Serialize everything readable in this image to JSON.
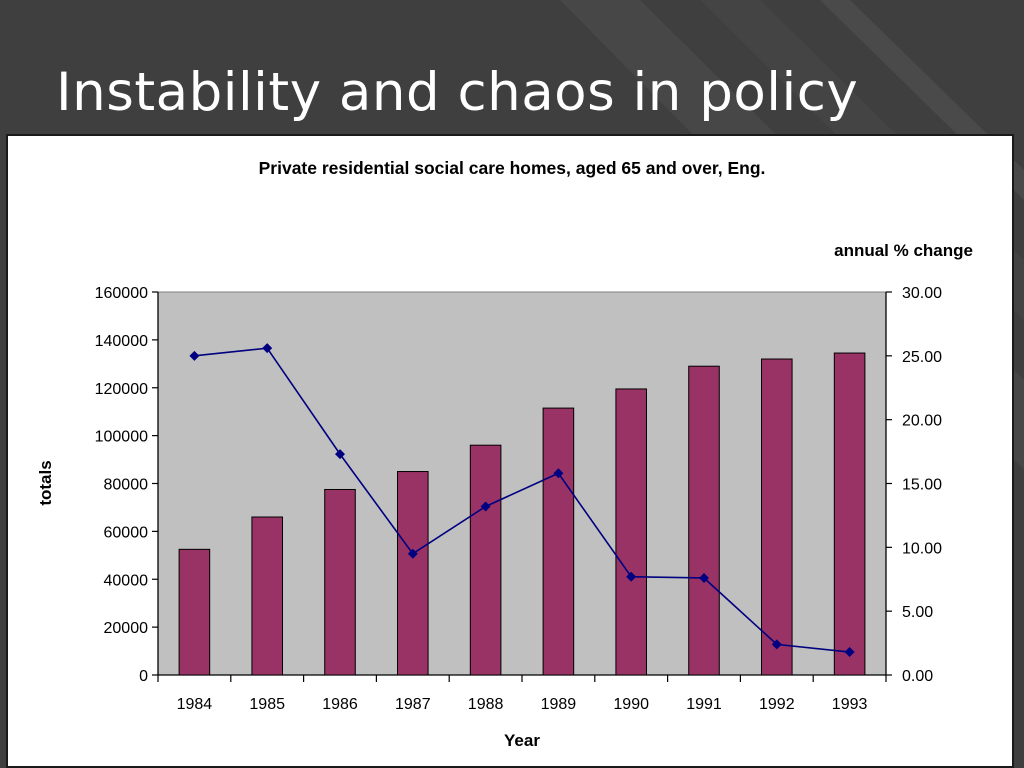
{
  "slide": {
    "title": "Instability and chaos in policy"
  },
  "colors": {
    "background": "#3f3f3f",
    "plot_area": "#c0c0c0",
    "bar": "#993366",
    "line": "#000080"
  },
  "chart_data": {
    "type": "bar",
    "title": "Private residential social care homes, aged 65 and over,  Eng.",
    "xlabel": "Year",
    "ylabel": "totals",
    "y2label": "annual % change",
    "categories": [
      "1984",
      "1985",
      "1986",
      "1987",
      "1988",
      "1989",
      "1990",
      "1991",
      "1992",
      "1993"
    ],
    "ylim": [
      0,
      160000
    ],
    "y_ticks": [
      "0",
      "20000",
      "40000",
      "60000",
      "80000",
      "100000",
      "120000",
      "140000",
      "160000"
    ],
    "y2lim": [
      0,
      30
    ],
    "y2_ticks": [
      "0.00",
      "5.00",
      "10.00",
      "15.00",
      "20.00",
      "25.00",
      "30.00"
    ],
    "grid": false,
    "legend": "none",
    "series": [
      {
        "type": "bar",
        "axis": "left",
        "values": [
          52500,
          66000,
          77500,
          85000,
          96000,
          111500,
          119500,
          129000,
          132000,
          134500
        ]
      },
      {
        "type": "line",
        "axis": "right",
        "marker": "diamond",
        "values": [
          25.0,
          25.6,
          17.3,
          9.5,
          13.2,
          15.8,
          7.7,
          7.6,
          2.4,
          1.8
        ]
      }
    ]
  }
}
